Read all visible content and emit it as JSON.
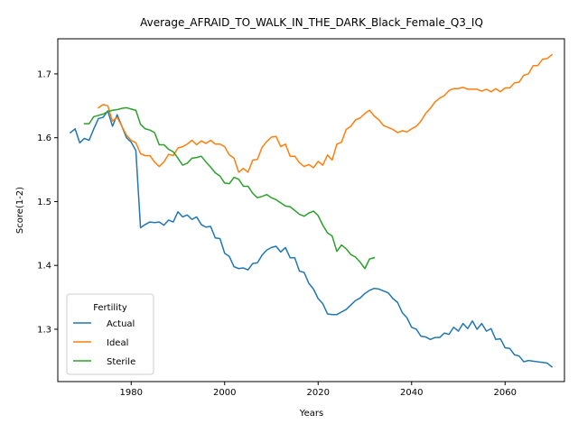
{
  "chart_data": {
    "type": "line",
    "title": "Average_AFRAID_TO_WALK_IN_THE_DARK_Black_Female_Q3_IQ",
    "xlabel": "Years",
    "ylabel": "Score(1-2)",
    "xlim": [
      1964.3,
      2072.7
    ],
    "ylim": [
      1.218,
      1.755
    ],
    "xticks": [
      1980,
      2000,
      2020,
      2040,
      2060
    ],
    "yticks": [
      1.3,
      1.4,
      1.5,
      1.6,
      1.7
    ],
    "xtick_labels": [
      "1980",
      "2000",
      "2020",
      "2040",
      "2060"
    ],
    "ytick_labels": [
      "1.3",
      "1.4",
      "1.5",
      "1.6",
      "1.7"
    ],
    "grid": false,
    "legend": {
      "title": "Fertility",
      "position": "lower-left"
    },
    "series": [
      {
        "name": "Actual",
        "color": "#1f77b4",
        "x": [
          1967,
          1968,
          1969,
          1970,
          1971,
          1972,
          1973,
          1974,
          1975,
          1976,
          1977,
          1978,
          1979,
          1980,
          1981,
          1982,
          1983,
          1984,
          1985,
          1986,
          1987,
          1988,
          1989,
          1990,
          1991,
          1992,
          1993,
          1994,
          1995,
          1996,
          1997,
          1998,
          1999,
          2000,
          2001,
          2002,
          2003,
          2004,
          2005,
          2006,
          2007,
          2008,
          2009,
          2010,
          2011,
          2012,
          2013,
          2014,
          2015,
          2016,
          2017,
          2018,
          2019,
          2020,
          2021,
          2022,
          2023,
          2024,
          2025,
          2026,
          2027,
          2028,
          2029,
          2030,
          2031,
          2032,
          2033,
          2034,
          2035,
          2036,
          2037,
          2038,
          2039,
          2040,
          2041,
          2042,
          2043,
          2044,
          2045,
          2046,
          2047,
          2048,
          2049,
          2050,
          2051,
          2052,
          2053,
          2054,
          2055,
          2056,
          2057,
          2058,
          2059,
          2060,
          2061,
          2062,
          2063,
          2064,
          2065,
          2066,
          2067,
          2068,
          2069,
          2070
        ],
        "values": [
          1.608,
          1.614,
          1.592,
          1.599,
          1.596,
          1.614,
          1.63,
          1.632,
          1.642,
          1.618,
          1.636,
          1.618,
          1.6,
          1.593,
          1.58,
          1.459,
          1.464,
          1.468,
          1.467,
          1.468,
          1.463,
          1.471,
          1.468,
          1.484,
          1.476,
          1.479,
          1.472,
          1.476,
          1.464,
          1.46,
          1.461,
          1.443,
          1.442,
          1.419,
          1.414,
          1.398,
          1.395,
          1.396,
          1.393,
          1.403,
          1.404,
          1.416,
          1.424,
          1.428,
          1.43,
          1.421,
          1.428,
          1.412,
          1.412,
          1.391,
          1.389,
          1.372,
          1.363,
          1.348,
          1.34,
          1.324,
          1.323,
          1.323,
          1.327,
          1.331,
          1.338,
          1.345,
          1.349,
          1.356,
          1.361,
          1.364,
          1.363,
          1.36,
          1.357,
          1.348,
          1.342,
          1.326,
          1.318,
          1.303,
          1.3,
          1.289,
          1.288,
          1.284,
          1.287,
          1.287,
          1.294,
          1.292,
          1.303,
          1.297,
          1.309,
          1.301,
          1.313,
          1.3,
          1.309,
          1.297,
          1.301,
          1.284,
          1.285,
          1.271,
          1.27,
          1.26,
          1.258,
          1.249,
          1.251,
          1.25,
          1.249,
          1.248,
          1.247,
          1.241
        ]
      },
      {
        "name": "Ideal",
        "color": "#ff7f0e",
        "x": [
          1973,
          1974,
          1975,
          1976,
          1977,
          1978,
          1979,
          1980,
          1981,
          1982,
          1983,
          1984,
          1985,
          1986,
          1987,
          1988,
          1989,
          1990,
          1991,
          1992,
          1993,
          1994,
          1995,
          1996,
          1997,
          1998,
          1999,
          2000,
          2001,
          2002,
          2003,
          2004,
          2005,
          2006,
          2007,
          2008,
          2009,
          2010,
          2011,
          2012,
          2013,
          2014,
          2015,
          2016,
          2017,
          2018,
          2019,
          2020,
          2021,
          2022,
          2023,
          2024,
          2025,
          2026,
          2027,
          2028,
          2029,
          2030,
          2031,
          2032,
          2033,
          2034,
          2035,
          2036,
          2037,
          2038,
          2039,
          2040,
          2041,
          2042,
          2043,
          2044,
          2045,
          2046,
          2047,
          2048,
          2049,
          2050,
          2051,
          2052,
          2053,
          2054,
          2055,
          2056,
          2057,
          2058,
          2059,
          2060,
          2061,
          2062,
          2063,
          2064,
          2065,
          2066,
          2067,
          2068,
          2069,
          2070
        ],
        "values": [
          1.647,
          1.652,
          1.65,
          1.626,
          1.632,
          1.618,
          1.604,
          1.596,
          1.592,
          1.575,
          1.572,
          1.572,
          1.562,
          1.555,
          1.562,
          1.574,
          1.572,
          1.584,
          1.586,
          1.59,
          1.596,
          1.589,
          1.595,
          1.591,
          1.596,
          1.59,
          1.59,
          1.586,
          1.573,
          1.568,
          1.546,
          1.552,
          1.546,
          1.565,
          1.566,
          1.585,
          1.594,
          1.601,
          1.602,
          1.586,
          1.59,
          1.571,
          1.571,
          1.561,
          1.555,
          1.558,
          1.553,
          1.563,
          1.557,
          1.573,
          1.565,
          1.59,
          1.593,
          1.613,
          1.618,
          1.628,
          1.631,
          1.638,
          1.643,
          1.634,
          1.628,
          1.619,
          1.616,
          1.613,
          1.608,
          1.611,
          1.609,
          1.614,
          1.618,
          1.626,
          1.638,
          1.646,
          1.656,
          1.662,
          1.666,
          1.674,
          1.677,
          1.677,
          1.679,
          1.676,
          1.676,
          1.676,
          1.673,
          1.676,
          1.672,
          1.677,
          1.672,
          1.678,
          1.678,
          1.686,
          1.687,
          1.698,
          1.7,
          1.713,
          1.713,
          1.723,
          1.724,
          1.73
        ]
      },
      {
        "name": "Sterile",
        "color": "#2ca02c",
        "x": [
          1970,
          1971,
          1972,
          1973,
          1974,
          1975,
          1976,
          1977,
          1978,
          1979,
          1980,
          1981,
          1982,
          1983,
          1984,
          1985,
          1986,
          1987,
          1988,
          1989,
          1990,
          1991,
          1992,
          1993,
          1994,
          1995,
          1996,
          1997,
          1998,
          1999,
          2000,
          2001,
          2002,
          2003,
          2004,
          2005,
          2006,
          2007,
          2008,
          2009,
          2010,
          2011,
          2012,
          2013,
          2014,
          2015,
          2016,
          2017,
          2018,
          2019,
          2020,
          2021,
          2022,
          2023,
          2024,
          2025,
          2026,
          2027,
          2028,
          2029,
          2030,
          2031,
          2032
        ],
        "values": [
          1.622,
          1.622,
          1.633,
          1.635,
          1.637,
          1.641,
          1.643,
          1.644,
          1.646,
          1.647,
          1.645,
          1.643,
          1.621,
          1.614,
          1.612,
          1.608,
          1.589,
          1.589,
          1.582,
          1.578,
          1.568,
          1.557,
          1.56,
          1.568,
          1.569,
          1.571,
          1.562,
          1.554,
          1.545,
          1.54,
          1.529,
          1.528,
          1.538,
          1.535,
          1.524,
          1.524,
          1.513,
          1.506,
          1.508,
          1.511,
          1.506,
          1.503,
          1.498,
          1.493,
          1.492,
          1.486,
          1.48,
          1.477,
          1.482,
          1.485,
          1.478,
          1.463,
          1.451,
          1.446,
          1.422,
          1.432,
          1.426,
          1.417,
          1.413,
          1.405,
          1.395,
          1.41,
          1.412
        ]
      }
    ]
  }
}
